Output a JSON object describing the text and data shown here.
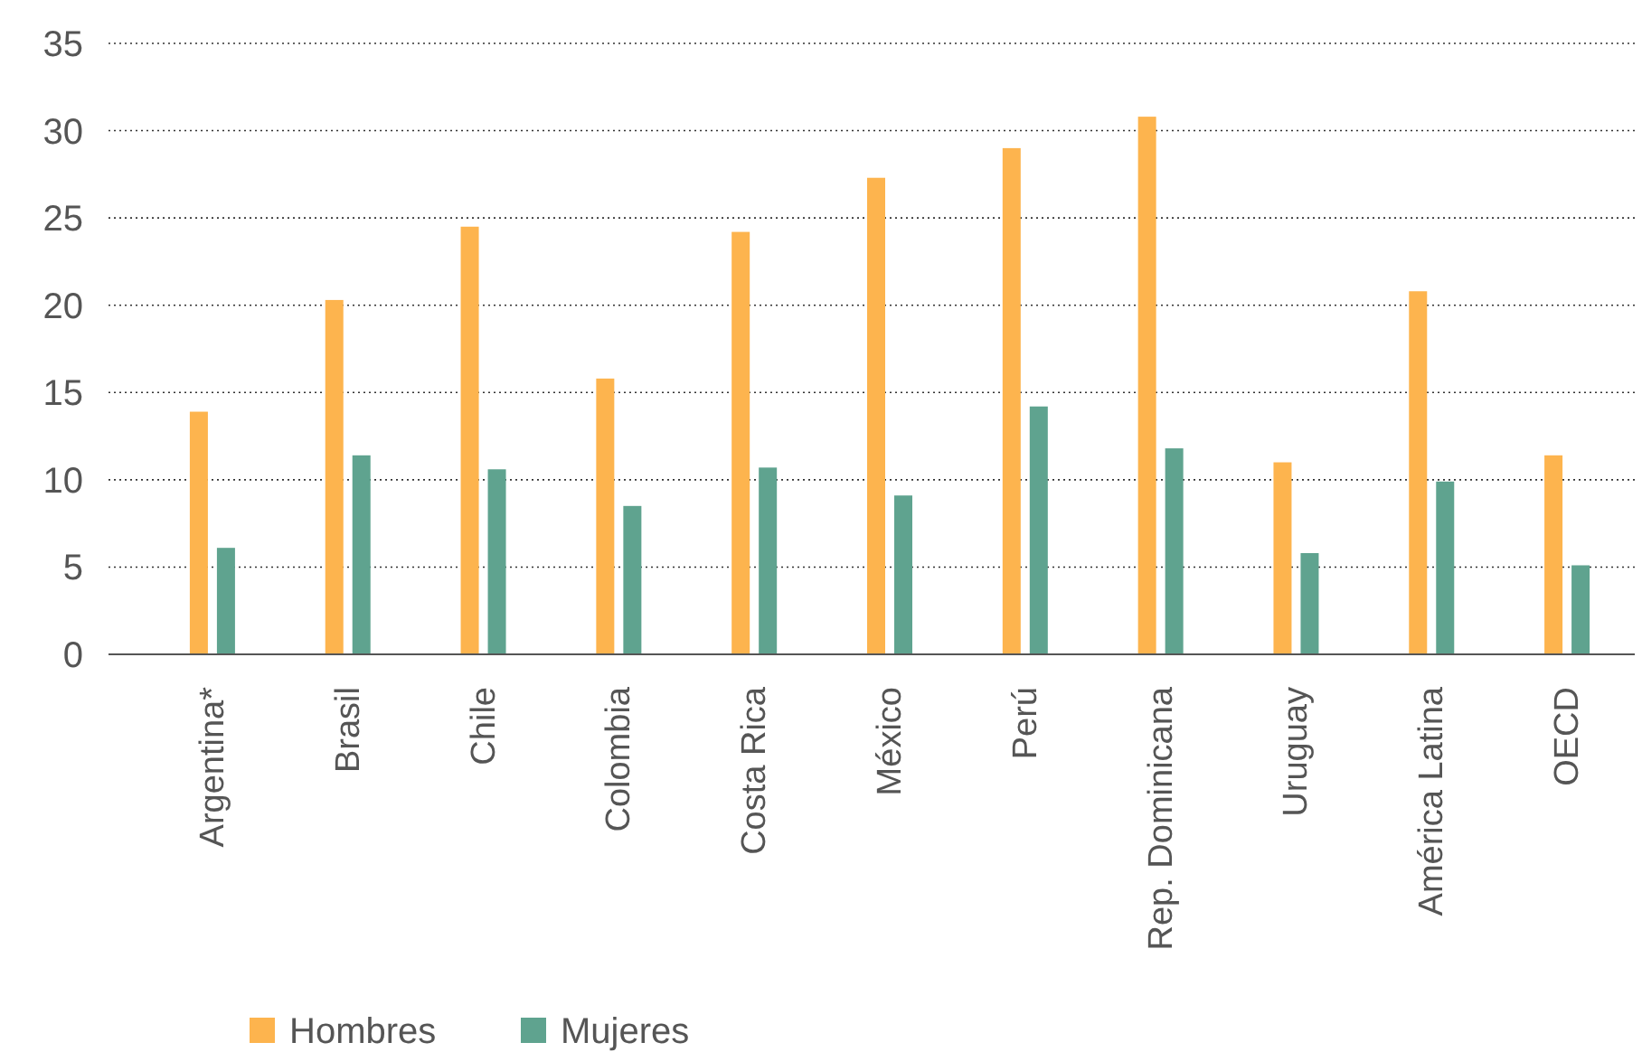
{
  "chart_data": {
    "type": "bar",
    "categories": [
      "Argentina*",
      "Brasil",
      "Chile",
      "Colombia",
      "Costa Rica",
      "México",
      "Perú",
      "Rep. Dominicana",
      "Uruguay",
      "América Latina",
      "OECD"
    ],
    "series": [
      {
        "name": "Hombres",
        "color": "#fdb44e",
        "values": [
          13.9,
          20.3,
          24.5,
          15.8,
          24.2,
          27.3,
          29.0,
          30.8,
          11.0,
          20.8,
          11.4
        ]
      },
      {
        "name": "Mujeres",
        "color": "#5fa38f",
        "values": [
          6.1,
          11.4,
          10.6,
          8.5,
          10.7,
          9.1,
          14.2,
          11.8,
          5.8,
          9.9,
          5.1
        ]
      }
    ],
    "ylim": [
      0,
      35
    ],
    "yticks": [
      0,
      5,
      10,
      15,
      20,
      25,
      30,
      35
    ],
    "grid": "y",
    "legend": "bottom left"
  }
}
